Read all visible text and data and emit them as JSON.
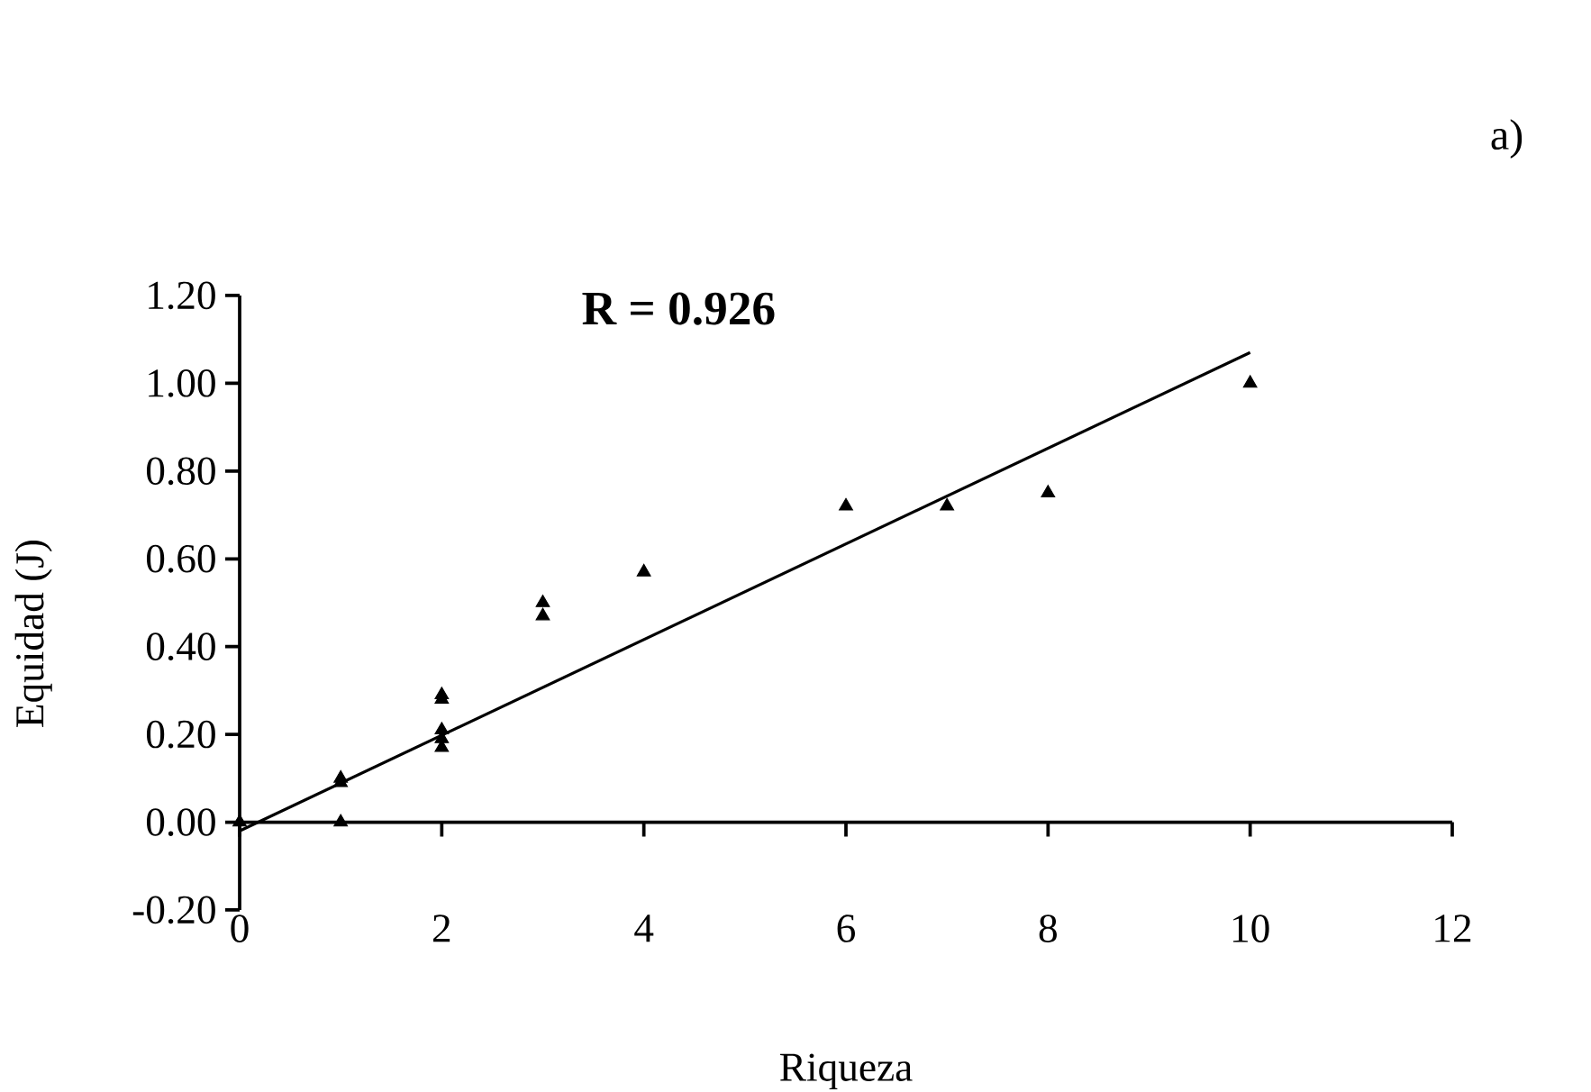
{
  "chart_data": {
    "type": "scatter",
    "xlabel": "Riqueza",
    "ylabel": "Equidad (J)",
    "annotations": [
      "R = 0.926",
      "a)"
    ],
    "xlim": [
      0,
      12
    ],
    "ylim": [
      -0.2,
      1.2
    ],
    "xticks": [
      0,
      2,
      4,
      6,
      8,
      10,
      12
    ],
    "yticks": [
      {
        "value": -0.2,
        "label": "-0.20"
      },
      {
        "value": 0,
        "label": "0.00"
      },
      {
        "value": 0.2,
        "label": "0.20"
      },
      {
        "value": 0.4,
        "label": "0.40"
      },
      {
        "value": 0.6,
        "label": "0.60"
      },
      {
        "value": 0.8,
        "label": "0.80"
      },
      {
        "value": 1.0,
        "label": "1.00"
      },
      {
        "value": 1.2,
        "label": "1.20"
      }
    ],
    "series": [
      {
        "type": "scatter",
        "color": "#000000",
        "marker": "triangle",
        "x": [
          0,
          1,
          1,
          1,
          2,
          2,
          2,
          2,
          2,
          3,
          3,
          4,
          6,
          7,
          8,
          10
        ],
        "values": [
          0,
          0.1,
          0.09,
          0,
          0.29,
          0.28,
          0.21,
          0.19,
          0.17,
          0.5,
          0.47,
          0.57,
          0.72,
          0.72,
          0.75,
          1.0
        ]
      },
      {
        "type": "line",
        "color": "#000000",
        "marker": "none",
        "line_style": "solid",
        "x": [
          0,
          10
        ],
        "values": [
          -0.02,
          1.07
        ]
      }
    ]
  }
}
